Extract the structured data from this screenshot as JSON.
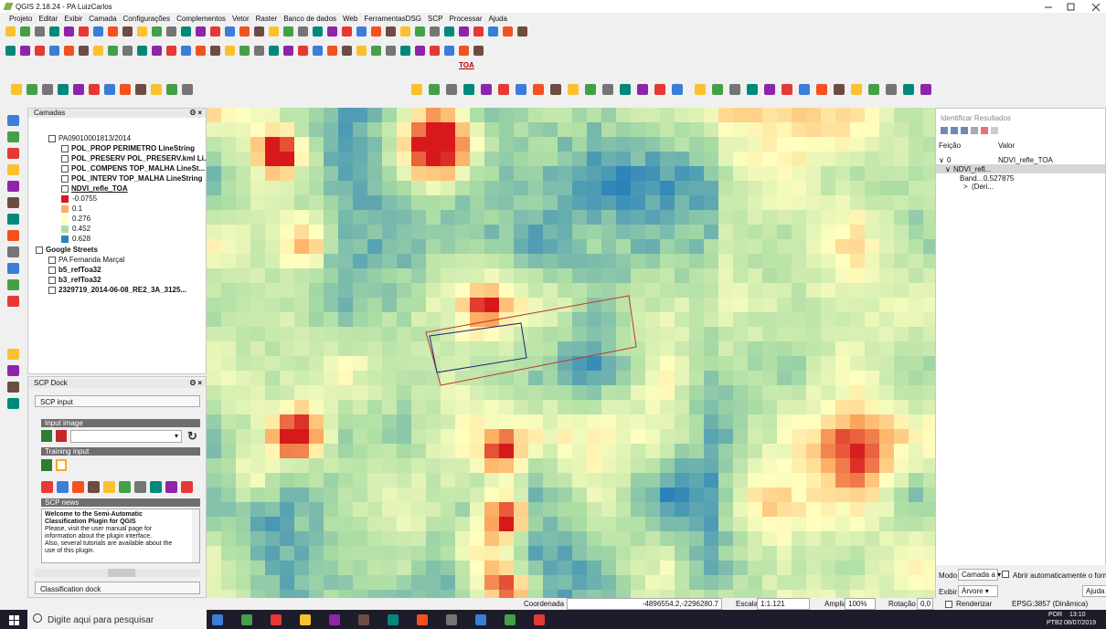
{
  "window": {
    "title": "QGIS 2.18.24 - PA LuizCarlos"
  },
  "menu": [
    "Projeto",
    "Editar",
    "Exibir",
    "Camada",
    "Configurações",
    "Complementos",
    "Vetor",
    "Raster",
    "Banco de dados",
    "Web",
    "FerramentasDSG",
    "SCP",
    "Processar",
    "Ajuda"
  ],
  "toolbar": {
    "label": "TOA"
  },
  "layers_panel": {
    "title": "Camadas",
    "tree": [
      {
        "label": "PA09010001813/2014",
        "indent": 1
      },
      {
        "label": "POL_PROP PERIMETRO LineString",
        "indent": 2
      },
      {
        "label": "POL_PRESERV POL_PRESERV.kml Li...",
        "indent": 2
      },
      {
        "label": "POL_COMPENS TOP_MALHA LineSt...",
        "indent": 2
      },
      {
        "label": "POL_INTERV TOP_MALHA LineString",
        "indent": 2
      },
      {
        "label": "NDVI_refle_TOA",
        "indent": 2
      }
    ],
    "legend": [
      {
        "label": "-0.0755",
        "color": "#d7191c"
      },
      {
        "label": "0.1",
        "color": "#fdae61"
      },
      {
        "label": "0.276",
        "color": "#ffffbf"
      },
      {
        "label": "0.452",
        "color": "#abdda4"
      },
      {
        "label": "0.628",
        "color": "#2b83ba"
      }
    ],
    "tree2": [
      {
        "label": "Google Streets",
        "indent": 0
      },
      {
        "label": "PA Fernanda Marçal",
        "indent": 1
      },
      {
        "label": "b5_refToa32",
        "indent": 1
      },
      {
        "label": "b3_refToa32",
        "indent": 1
      },
      {
        "label": "2329719_2014-06-08_RE2_3A_3125...",
        "indent": 1
      }
    ]
  },
  "scp_dock": {
    "title": "SCP Dock",
    "tab": "SCP input",
    "input_image": "Input image",
    "training_input": "Training input",
    "news": "SCP news",
    "news_title": [
      "Welcome to the Semi-Automatic",
      "Classification Plugin for QGIS"
    ],
    "news_lines": [
      "Please, visit the user manual page for",
      "information about the plugin interface.",
      "Also, several tutorials are available about the",
      "use of this plugin."
    ],
    "footer": "Classification dock"
  },
  "identify": {
    "title": "Identificar Resultados",
    "col_feature": "Feição",
    "col_value": "Valor",
    "rows": [
      [
        "0",
        "NDVI_refle_TOA"
      ],
      [
        "NDVI_refl..."
      ],
      [
        "Band...",
        "0.527875"
      ],
      [
        "(Deri..."
      ]
    ],
    "mode_label": "Modo",
    "mode_value": "Camada a",
    "auto_open": "Abrir automaticamente o formulário",
    "view_label": "Exibir",
    "view_value": "Árvore",
    "help": "Ajuda"
  },
  "statusbar": {
    "coord_label": "Coordenada",
    "coord": "-4896554.2,-2296280.7",
    "scale_label": "Escala",
    "scale": "1:1.121",
    "magnify_label": "Ampliar",
    "magnify": "100%",
    "rotation_label": "Rotação",
    "rotation": "0,0",
    "render": "Renderizar",
    "crs": "EPSG:3857 (Dinâmica)"
  },
  "taskbar": {
    "search": "Digite aqui para pesquisar",
    "lang": "POR",
    "lang2": "PTB2",
    "time": "13:10",
    "date": "08/07/2019"
  }
}
